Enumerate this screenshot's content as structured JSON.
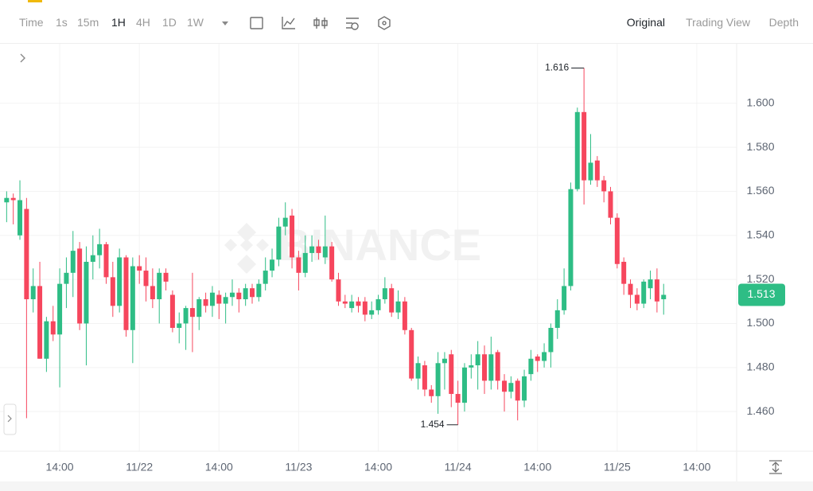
{
  "toolbar": {
    "intervals": [
      "Time",
      "1s",
      "15m",
      "1H",
      "4H",
      "1D",
      "1W"
    ],
    "active_interval": 3,
    "views": [
      "Original",
      "Trading View",
      "Depth"
    ],
    "active_view": 0
  },
  "chart_data": {
    "type": "candlestick",
    "watermark": "BINANCE",
    "up_color": "#2ebd85",
    "down_color": "#f6465d",
    "open": [
      1.555,
      1.557,
      1.54,
      1.552,
      1.511,
      1.517,
      1.484,
      1.501,
      1.495,
      1.518,
      1.523,
      1.534,
      1.5,
      1.528,
      1.531,
      1.536,
      1.521,
      1.508,
      1.53,
      1.497,
      1.526,
      1.524,
      1.517,
      1.511,
      1.523,
      1.513,
      1.498,
      1.5,
      1.507,
      1.503,
      1.511,
      1.508,
      1.513,
      1.509,
      1.512,
      1.514,
      1.511,
      1.516,
      1.512,
      1.518,
      1.524,
      1.529,
      1.544,
      1.549,
      1.53,
      1.523,
      1.532,
      1.535,
      1.53,
      1.535,
      1.52,
      1.51,
      1.507,
      1.51,
      1.51,
      1.504,
      1.506,
      1.511,
      1.516,
      1.505,
      1.51,
      1.497,
      1.475,
      1.481,
      1.47,
      1.467,
      1.482,
      1.486,
      1.468,
      1.464,
      1.48,
      1.481,
      1.486,
      1.474,
      1.487,
      1.474,
      1.469,
      1.474,
      1.465,
      1.477,
      1.485,
      1.483,
      1.487,
      1.498,
      1.506,
      1.517,
      1.561,
      1.596,
      1.565,
      1.574,
      1.565,
      1.56,
      1.548,
      1.528,
      1.518,
      1.513,
      1.509,
      1.516,
      1.52,
      1.511
    ],
    "high": [
      1.56,
      1.559,
      1.565,
      1.557,
      1.525,
      1.528,
      1.503,
      1.508,
      1.525,
      1.53,
      1.542,
      1.537,
      1.535,
      1.54,
      1.543,
      1.537,
      1.528,
      1.534,
      1.531,
      1.53,
      1.531,
      1.53,
      1.525,
      1.525,
      1.525,
      1.515,
      1.505,
      1.508,
      1.523,
      1.512,
      1.514,
      1.517,
      1.515,
      1.514,
      1.52,
      1.516,
      1.518,
      1.518,
      1.52,
      1.53,
      1.534,
      1.548,
      1.555,
      1.552,
      1.533,
      1.54,
      1.54,
      1.538,
      1.549,
      1.537,
      1.523,
      1.513,
      1.513,
      1.512,
      1.512,
      1.51,
      1.513,
      1.521,
      1.518,
      1.515,
      1.512,
      1.498,
      1.485,
      1.483,
      1.472,
      1.487,
      1.487,
      1.488,
      1.474,
      1.482,
      1.486,
      1.492,
      1.49,
      1.494,
      1.488,
      1.477,
      1.476,
      1.475,
      1.479,
      1.488,
      1.486,
      1.491,
      1.5,
      1.511,
      1.525,
      1.564,
      1.598,
      1.616,
      1.586,
      1.576,
      1.567,
      1.562,
      1.55,
      1.53,
      1.52,
      1.516,
      1.52,
      1.524,
      1.525,
      1.518
    ],
    "low": [
      1.546,
      1.545,
      1.538,
      1.457,
      1.505,
      1.484,
      1.478,
      1.492,
      1.471,
      1.507,
      1.512,
      1.497,
      1.481,
      1.52,
      1.525,
      1.518,
      1.503,
      1.505,
      1.494,
      1.482,
      1.518,
      1.51,
      1.507,
      1.5,
      1.515,
      1.496,
      1.491,
      1.488,
      1.487,
      1.497,
      1.505,
      1.503,
      1.502,
      1.5,
      1.508,
      1.505,
      1.508,
      1.509,
      1.51,
      1.515,
      1.521,
      1.526,
      1.54,
      1.525,
      1.515,
      1.521,
      1.528,
      1.529,
      1.527,
      1.519,
      1.508,
      1.507,
      1.505,
      1.505,
      1.501,
      1.502,
      1.504,
      1.509,
      1.503,
      1.502,
      1.495,
      1.474,
      1.47,
      1.467,
      1.464,
      1.459,
      1.47,
      1.462,
      1.454,
      1.46,
      1.475,
      1.47,
      1.468,
      1.47,
      1.47,
      1.46,
      1.466,
      1.456,
      1.462,
      1.474,
      1.478,
      1.48,
      1.48,
      1.493,
      1.504,
      1.515,
      1.56,
      1.554,
      1.563,
      1.562,
      1.555,
      1.545,
      1.525,
      1.513,
      1.507,
      1.506,
      1.507,
      1.511,
      1.505,
      1.504
    ],
    "close": [
      1.557,
      1.556,
      1.556,
      1.511,
      1.517,
      1.484,
      1.501,
      1.495,
      1.518,
      1.523,
      1.533,
      1.5,
      1.528,
      1.531,
      1.536,
      1.521,
      1.508,
      1.53,
      1.497,
      1.526,
      1.524,
      1.517,
      1.511,
      1.523,
      1.519,
      1.498,
      1.5,
      1.507,
      1.503,
      1.511,
      1.508,
      1.514,
      1.509,
      1.512,
      1.514,
      1.511,
      1.516,
      1.512,
      1.518,
      1.524,
      1.529,
      1.544,
      1.548,
      1.53,
      1.523,
      1.532,
      1.535,
      1.532,
      1.535,
      1.52,
      1.51,
      1.509,
      1.51,
      1.508,
      1.504,
      1.506,
      1.511,
      1.516,
      1.505,
      1.51,
      1.497,
      1.475,
      1.482,
      1.47,
      1.467,
      1.482,
      1.484,
      1.468,
      1.464,
      1.48,
      1.481,
      1.486,
      1.474,
      1.486,
      1.474,
      1.469,
      1.473,
      1.465,
      1.476,
      1.484,
      1.483,
      1.487,
      1.498,
      1.506,
      1.517,
      1.561,
      1.596,
      1.565,
      1.573,
      1.565,
      1.56,
      1.548,
      1.527,
      1.518,
      1.513,
      1.509,
      1.519,
      1.52,
      1.51,
      1.513
    ],
    "xlim": [
      -1,
      110
    ],
    "xticks": [
      {
        "value": 8,
        "label": "14:00"
      },
      {
        "value": 20,
        "label": "11/22"
      },
      {
        "value": 32,
        "label": "14:00"
      },
      {
        "value": 44,
        "label": "11/23"
      },
      {
        "value": 56,
        "label": "14:00"
      },
      {
        "value": 68,
        "label": "11/24"
      },
      {
        "value": 80,
        "label": "14:00"
      },
      {
        "value": 92,
        "label": "11/25"
      },
      {
        "value": 104,
        "label": "14:00"
      }
    ],
    "ylim": [
      1.442,
      1.627
    ],
    "yticks": [
      {
        "value": 1.46,
        "label": "1.460"
      },
      {
        "value": 1.48,
        "label": "1.480"
      },
      {
        "value": 1.5,
        "label": "1.500"
      },
      {
        "value": 1.52,
        "label": "1.520"
      },
      {
        "value": 1.54,
        "label": "1.540"
      },
      {
        "value": 1.56,
        "label": "1.560"
      },
      {
        "value": 1.58,
        "label": "1.580"
      },
      {
        "value": 1.6,
        "label": "1.600"
      }
    ],
    "grid": true
  }
}
